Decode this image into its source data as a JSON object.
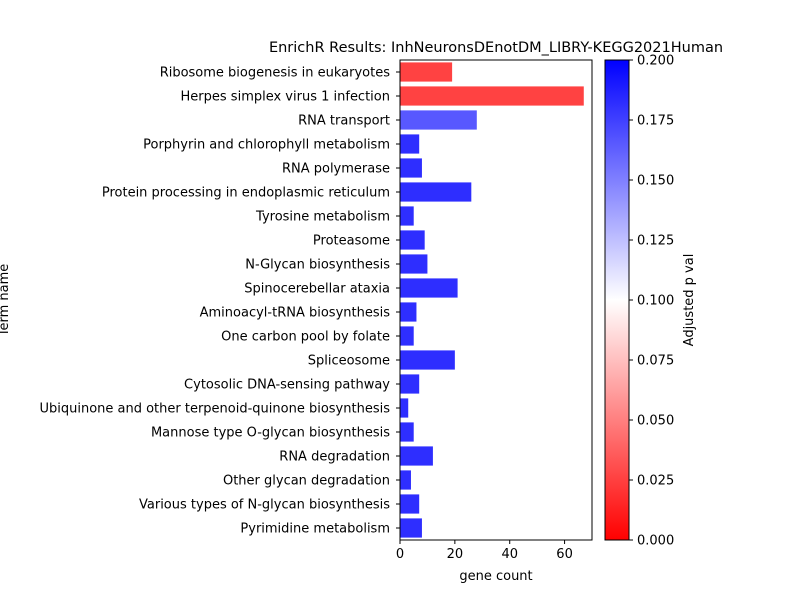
{
  "chart_data": {
    "type": "bar",
    "orientation": "horizontal",
    "title": "EnrichR Results: InhNeuronsDEnotDM_LIBRY-KEGG2021Human",
    "xlabel": "gene count",
    "ylabel": "Term name",
    "xlim": [
      0,
      70
    ],
    "xticks": [
      0,
      20,
      40,
      60
    ],
    "grid": false,
    "categories": [
      "Ribosome biogenesis in eukaryotes",
      "Herpes simplex virus 1 infection",
      "RNA transport",
      "Porphyrin and chlorophyll metabolism",
      "RNA polymerase",
      "Protein processing in endoplasmic reticulum",
      "Tyrosine metabolism",
      "Proteasome",
      "N-Glycan biosynthesis",
      "Spinocerebellar ataxia",
      "Aminoacyl-tRNA biosynthesis",
      "One carbon pool by folate",
      "Spliceosome",
      "Cytosolic DNA-sensing pathway",
      "Ubiquinone and other terpenoid-quinone biosynthesis",
      "Mannose type O-glycan biosynthesis",
      "RNA degradation",
      "Other glycan degradation",
      "Various types of N-glycan biosynthesis",
      "Pyrimidine metabolism"
    ],
    "values": [
      19,
      67,
      28,
      7,
      8,
      26,
      5,
      9,
      10,
      21,
      6,
      5,
      20,
      7,
      3,
      5,
      12,
      4,
      7,
      8
    ],
    "adjusted_p": [
      0.01,
      0.01,
      0.18,
      0.2,
      0.2,
      0.2,
      0.2,
      0.2,
      0.2,
      0.2,
      0.2,
      0.2,
      0.2,
      0.2,
      0.2,
      0.2,
      0.2,
      0.2,
      0.2,
      0.2
    ],
    "colorbar": {
      "label": "Adjusted p val",
      "range": [
        0.0,
        0.2
      ],
      "ticks": [
        "0.000",
        "0.025",
        "0.050",
        "0.075",
        "0.100",
        "0.125",
        "0.150",
        "0.175",
        "0.200"
      ],
      "colors": [
        "#ff0000",
        "#ffffff",
        "#0000ff"
      ]
    }
  }
}
